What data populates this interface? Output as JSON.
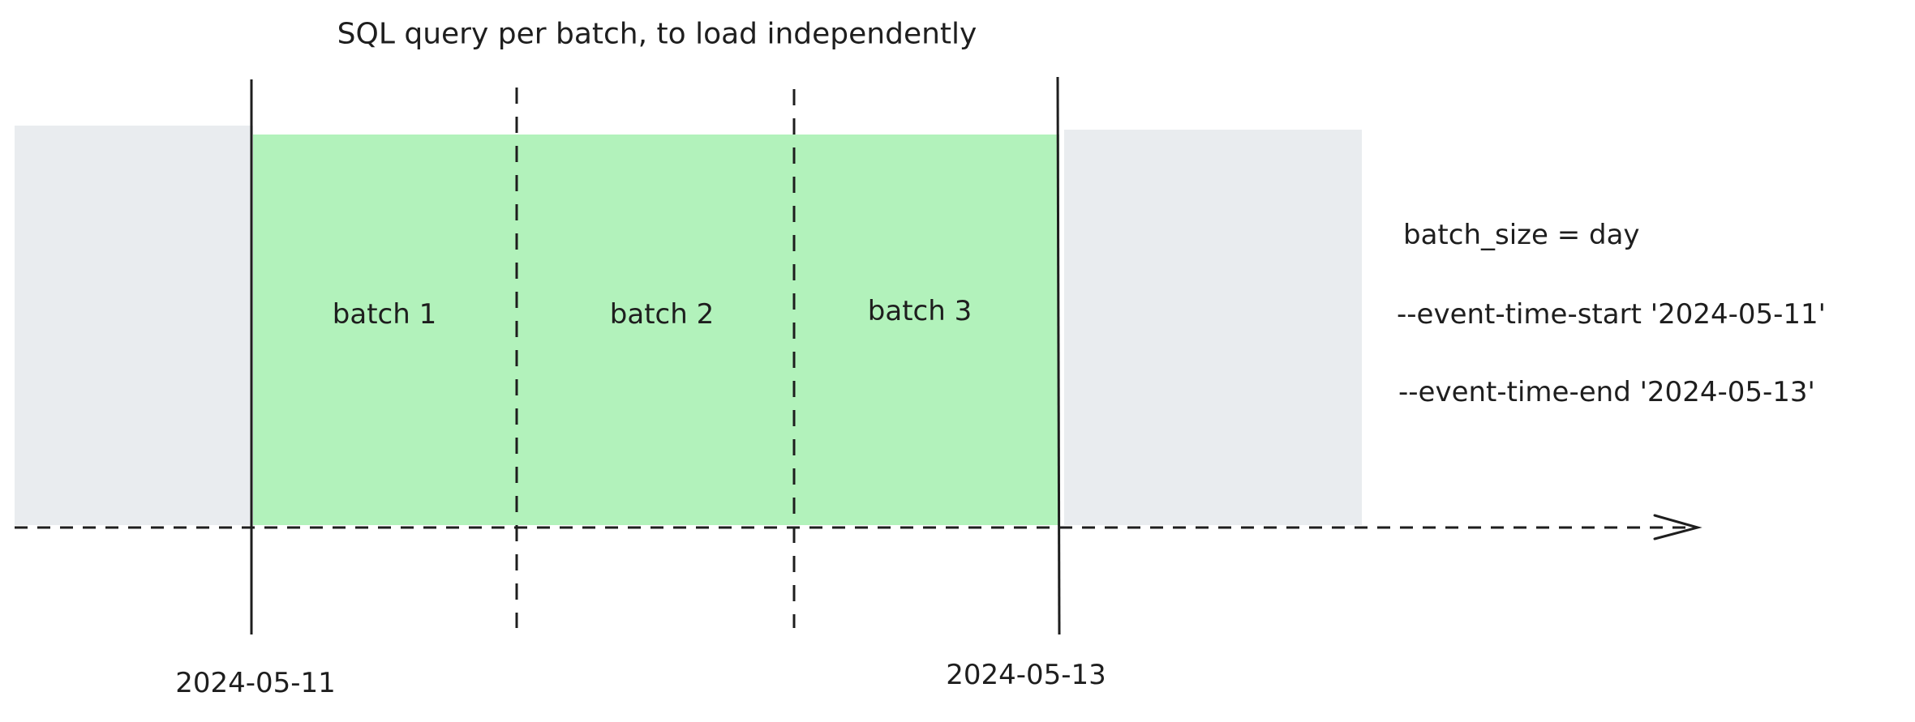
{
  "title": "SQL query per batch, to load independently",
  "batches": [
    {
      "label": "batch 1"
    },
    {
      "label": "batch 2"
    },
    {
      "label": "batch 3"
    }
  ],
  "boundary_dates": {
    "start": "2024-05-11",
    "end": "2024-05-13"
  },
  "config_lines": [
    "batch_size = day",
    "--event-time-start '2024-05-11'",
    "--event-time-end '2024-05-13'"
  ],
  "colors": {
    "selected_range": "#b2f2bb",
    "outside_range": "#e9ecef",
    "stroke": "#1e1e1e"
  }
}
